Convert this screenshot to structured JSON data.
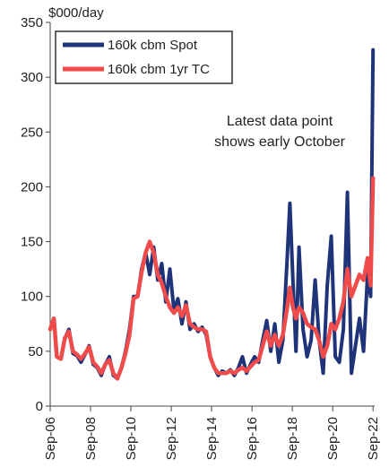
{
  "chart_data": {
    "type": "line",
    "unit_label": "$000/day",
    "ylim": [
      0,
      350
    ],
    "yticks": [
      0,
      50,
      100,
      150,
      200,
      250,
      300,
      350
    ],
    "xlim": [
      2006.67,
      2022.75
    ],
    "xticks": [
      {
        "label": "Sep-06",
        "value": 2006.67
      },
      {
        "label": "Sep-08",
        "value": 2008.67
      },
      {
        "label": "Sep-10",
        "value": 2010.67
      },
      {
        "label": "Sep-12",
        "value": 2012.67
      },
      {
        "label": "Sep-14",
        "value": 2014.67
      },
      {
        "label": "Sep-16",
        "value": 2016.67
      },
      {
        "label": "Sep-18",
        "value": 2018.67
      },
      {
        "label": "Sep-20",
        "value": 2020.67
      },
      {
        "label": "Sep-22",
        "value": 2022.67
      }
    ],
    "grid": false,
    "legend_position": "top-left",
    "annotation": [
      "Latest data point",
      "shows early October"
    ],
    "series": [
      {
        "name": "160k cbm Spot",
        "color": "#1f3478",
        "points": [
          [
            2006.67,
            70
          ],
          [
            2006.85,
            80
          ],
          [
            2007.0,
            45
          ],
          [
            2007.2,
            43
          ],
          [
            2007.4,
            62
          ],
          [
            2007.6,
            70
          ],
          [
            2007.8,
            48
          ],
          [
            2008.0,
            46
          ],
          [
            2008.2,
            40
          ],
          [
            2008.4,
            47
          ],
          [
            2008.6,
            55
          ],
          [
            2008.8,
            38
          ],
          [
            2009.0,
            35
          ],
          [
            2009.2,
            28
          ],
          [
            2009.4,
            38
          ],
          [
            2009.6,
            45
          ],
          [
            2009.8,
            28
          ],
          [
            2010.0,
            25
          ],
          [
            2010.2,
            35
          ],
          [
            2010.4,
            50
          ],
          [
            2010.6,
            70
          ],
          [
            2010.8,
            100
          ],
          [
            2011.0,
            100
          ],
          [
            2011.2,
            125
          ],
          [
            2011.4,
            140
          ],
          [
            2011.6,
            120
          ],
          [
            2011.8,
            145
          ],
          [
            2012.0,
            115
          ],
          [
            2012.2,
            130
          ],
          [
            2012.4,
            95
          ],
          [
            2012.6,
            125
          ],
          [
            2012.8,
            88
          ],
          [
            2013.0,
            98
          ],
          [
            2013.2,
            75
          ],
          [
            2013.4,
            95
          ],
          [
            2013.6,
            70
          ],
          [
            2013.8,
            75
          ],
          [
            2014.0,
            68
          ],
          [
            2014.2,
            72
          ],
          [
            2014.4,
            65
          ],
          [
            2014.6,
            45
          ],
          [
            2014.8,
            35
          ],
          [
            2015.0,
            28
          ],
          [
            2015.2,
            32
          ],
          [
            2015.4,
            30
          ],
          [
            2015.6,
            33
          ],
          [
            2015.8,
            28
          ],
          [
            2016.0,
            35
          ],
          [
            2016.2,
            45
          ],
          [
            2016.4,
            30
          ],
          [
            2016.6,
            38
          ],
          [
            2016.8,
            45
          ],
          [
            2017.0,
            40
          ],
          [
            2017.2,
            60
          ],
          [
            2017.4,
            78
          ],
          [
            2017.6,
            50
          ],
          [
            2017.8,
            75
          ],
          [
            2018.0,
            40
          ],
          [
            2018.2,
            60
          ],
          [
            2018.4,
            130
          ],
          [
            2018.55,
            185
          ],
          [
            2018.7,
            115
          ],
          [
            2018.85,
            50
          ],
          [
            2019.0,
            145
          ],
          [
            2019.2,
            70
          ],
          [
            2019.4,
            45
          ],
          [
            2019.6,
            60
          ],
          [
            2019.8,
            115
          ],
          [
            2020.0,
            60
          ],
          [
            2020.2,
            30
          ],
          [
            2020.4,
            110
          ],
          [
            2020.6,
            155
          ],
          [
            2020.8,
            45
          ],
          [
            2021.0,
            40
          ],
          [
            2021.2,
            70
          ],
          [
            2021.4,
            195
          ],
          [
            2021.6,
            30
          ],
          [
            2021.8,
            55
          ],
          [
            2022.0,
            80
          ],
          [
            2022.2,
            50
          ],
          [
            2022.4,
            120
          ],
          [
            2022.55,
            100
          ],
          [
            2022.67,
            325
          ]
        ]
      },
      {
        "name": "160k cbm 1yr TC",
        "color": "#f04b4b",
        "points": [
          [
            2006.67,
            70
          ],
          [
            2006.85,
            80
          ],
          [
            2007.0,
            45
          ],
          [
            2007.2,
            43
          ],
          [
            2007.4,
            62
          ],
          [
            2007.6,
            68
          ],
          [
            2007.8,
            50
          ],
          [
            2008.0,
            47
          ],
          [
            2008.2,
            43
          ],
          [
            2008.4,
            48
          ],
          [
            2008.6,
            54
          ],
          [
            2008.8,
            40
          ],
          [
            2009.0,
            36
          ],
          [
            2009.2,
            30
          ],
          [
            2009.4,
            38
          ],
          [
            2009.6,
            42
          ],
          [
            2009.8,
            30
          ],
          [
            2010.0,
            25
          ],
          [
            2010.2,
            35
          ],
          [
            2010.4,
            48
          ],
          [
            2010.6,
            65
          ],
          [
            2010.8,
            98
          ],
          [
            2011.0,
            100
          ],
          [
            2011.2,
            122
          ],
          [
            2011.4,
            140
          ],
          [
            2011.6,
            150
          ],
          [
            2011.8,
            140
          ],
          [
            2012.0,
            120
          ],
          [
            2012.2,
            112
          ],
          [
            2012.4,
            100
          ],
          [
            2012.6,
            90
          ],
          [
            2012.8,
            85
          ],
          [
            2013.0,
            90
          ],
          [
            2013.2,
            82
          ],
          [
            2013.4,
            92
          ],
          [
            2013.6,
            75
          ],
          [
            2013.8,
            72
          ],
          [
            2014.0,
            70
          ],
          [
            2014.2,
            70
          ],
          [
            2014.4,
            68
          ],
          [
            2014.6,
            45
          ],
          [
            2014.8,
            35
          ],
          [
            2015.0,
            30
          ],
          [
            2015.2,
            30
          ],
          [
            2015.4,
            30
          ],
          [
            2015.6,
            32
          ],
          [
            2015.8,
            30
          ],
          [
            2016.0,
            33
          ],
          [
            2016.2,
            35
          ],
          [
            2016.4,
            32
          ],
          [
            2016.6,
            36
          ],
          [
            2016.8,
            40
          ],
          [
            2017.0,
            42
          ],
          [
            2017.2,
            55
          ],
          [
            2017.4,
            68
          ],
          [
            2017.6,
            55
          ],
          [
            2017.8,
            65
          ],
          [
            2018.0,
            55
          ],
          [
            2018.2,
            65
          ],
          [
            2018.4,
            88
          ],
          [
            2018.55,
            108
          ],
          [
            2018.7,
            90
          ],
          [
            2018.85,
            80
          ],
          [
            2019.0,
            90
          ],
          [
            2019.2,
            85
          ],
          [
            2019.4,
            75
          ],
          [
            2019.6,
            72
          ],
          [
            2019.8,
            70
          ],
          [
            2020.0,
            60
          ],
          [
            2020.2,
            45
          ],
          [
            2020.4,
            55
          ],
          [
            2020.6,
            75
          ],
          [
            2020.8,
            70
          ],
          [
            2021.0,
            80
          ],
          [
            2021.2,
            95
          ],
          [
            2021.4,
            125
          ],
          [
            2021.6,
            100
          ],
          [
            2021.8,
            110
          ],
          [
            2022.0,
            120
          ],
          [
            2022.2,
            115
          ],
          [
            2022.4,
            135
          ],
          [
            2022.55,
            110
          ],
          [
            2022.67,
            208
          ]
        ]
      }
    ]
  }
}
